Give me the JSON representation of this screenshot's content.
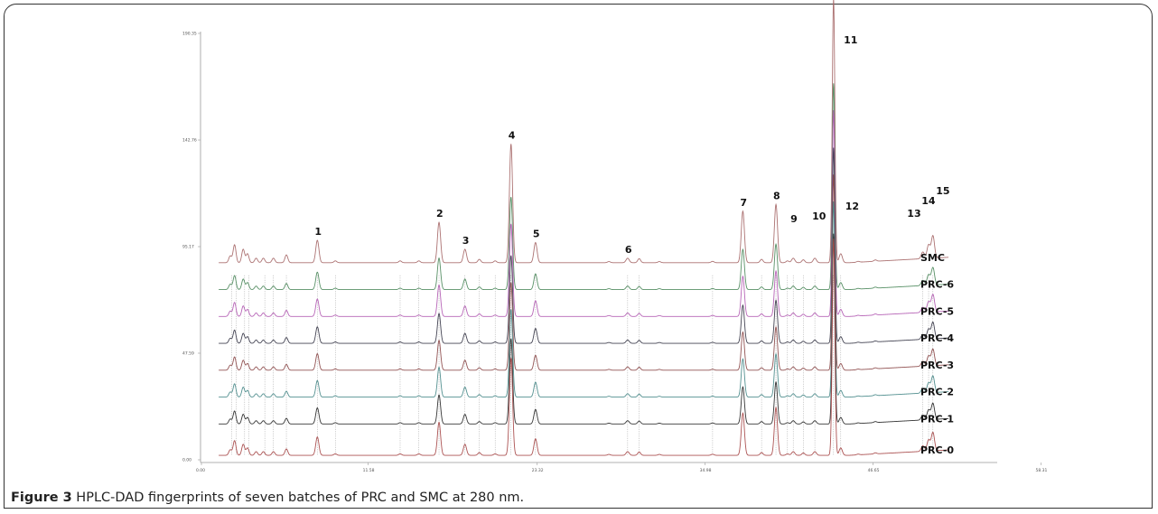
{
  "figure": {
    "caption_bold": "Figure 3",
    "caption_text": " HPLC-DAD fingerprints of seven batches of PRC and SMC at 280 nm."
  },
  "colors": {
    "SMC": "#a86a6a",
    "PRC-6": "#4f8a5e",
    "PRC-5": "#b35db3",
    "PRC-4": "#3a3a4a",
    "PRC-3": "#8c4a4a",
    "PRC-2": "#4a8a8a",
    "PRC-1": "#2a2a2a",
    "PRC-0": "#a84a4a"
  },
  "chart_data": {
    "type": "line",
    "x_unit": "min",
    "xlim": [
      0,
      52
    ],
    "ylim": [
      0,
      190.35
    ],
    "x_ticks": [
      "0.00",
      "11.58",
      "23.32",
      "34.98",
      "46.65",
      "58.31"
    ],
    "y_ticks": [
      "0.00",
      "47.59",
      "95.17",
      "142.76",
      "190.35"
    ],
    "series": [
      {
        "name": "SMC",
        "offset": 88
      },
      {
        "name": "PRC-6",
        "offset": 76
      },
      {
        "name": "PRC-5",
        "offset": 64
      },
      {
        "name": "PRC-4",
        "offset": 52
      },
      {
        "name": "PRC-3",
        "offset": 40
      },
      {
        "name": "PRC-2",
        "offset": 28
      },
      {
        "name": "PRC-1",
        "offset": 16
      },
      {
        "name": "PRC-0",
        "offset": 2
      }
    ],
    "peaks": [
      {
        "label": "1",
        "x": 8.05,
        "height": 10
      },
      {
        "label": "2",
        "x": 16.5,
        "height": 18
      },
      {
        "label": "3",
        "x": 18.3,
        "height": 6
      },
      {
        "label": "4",
        "x": 21.5,
        "height": 53
      },
      {
        "label": "5",
        "x": 23.2,
        "height": 9
      },
      {
        "label": "6",
        "x": 29.6,
        "height": 2
      },
      {
        "label": "7",
        "x": 37.6,
        "height": 23
      },
      {
        "label": "8",
        "x": 39.9,
        "height": 26
      },
      {
        "label": "9",
        "x": 41.1,
        "height": 2
      },
      {
        "label": "10",
        "x": 42.6,
        "height": 2
      },
      {
        "label": "11",
        "x": 43.9,
        "height": 118
      },
      {
        "label": "12",
        "x": 44.4,
        "height": 4
      },
      {
        "label": "13",
        "x": 50.1,
        "height": 3
      },
      {
        "label": "14",
        "x": 50.5,
        "height": 6
      },
      {
        "label": "15",
        "x": 50.8,
        "height": 10
      }
    ]
  }
}
